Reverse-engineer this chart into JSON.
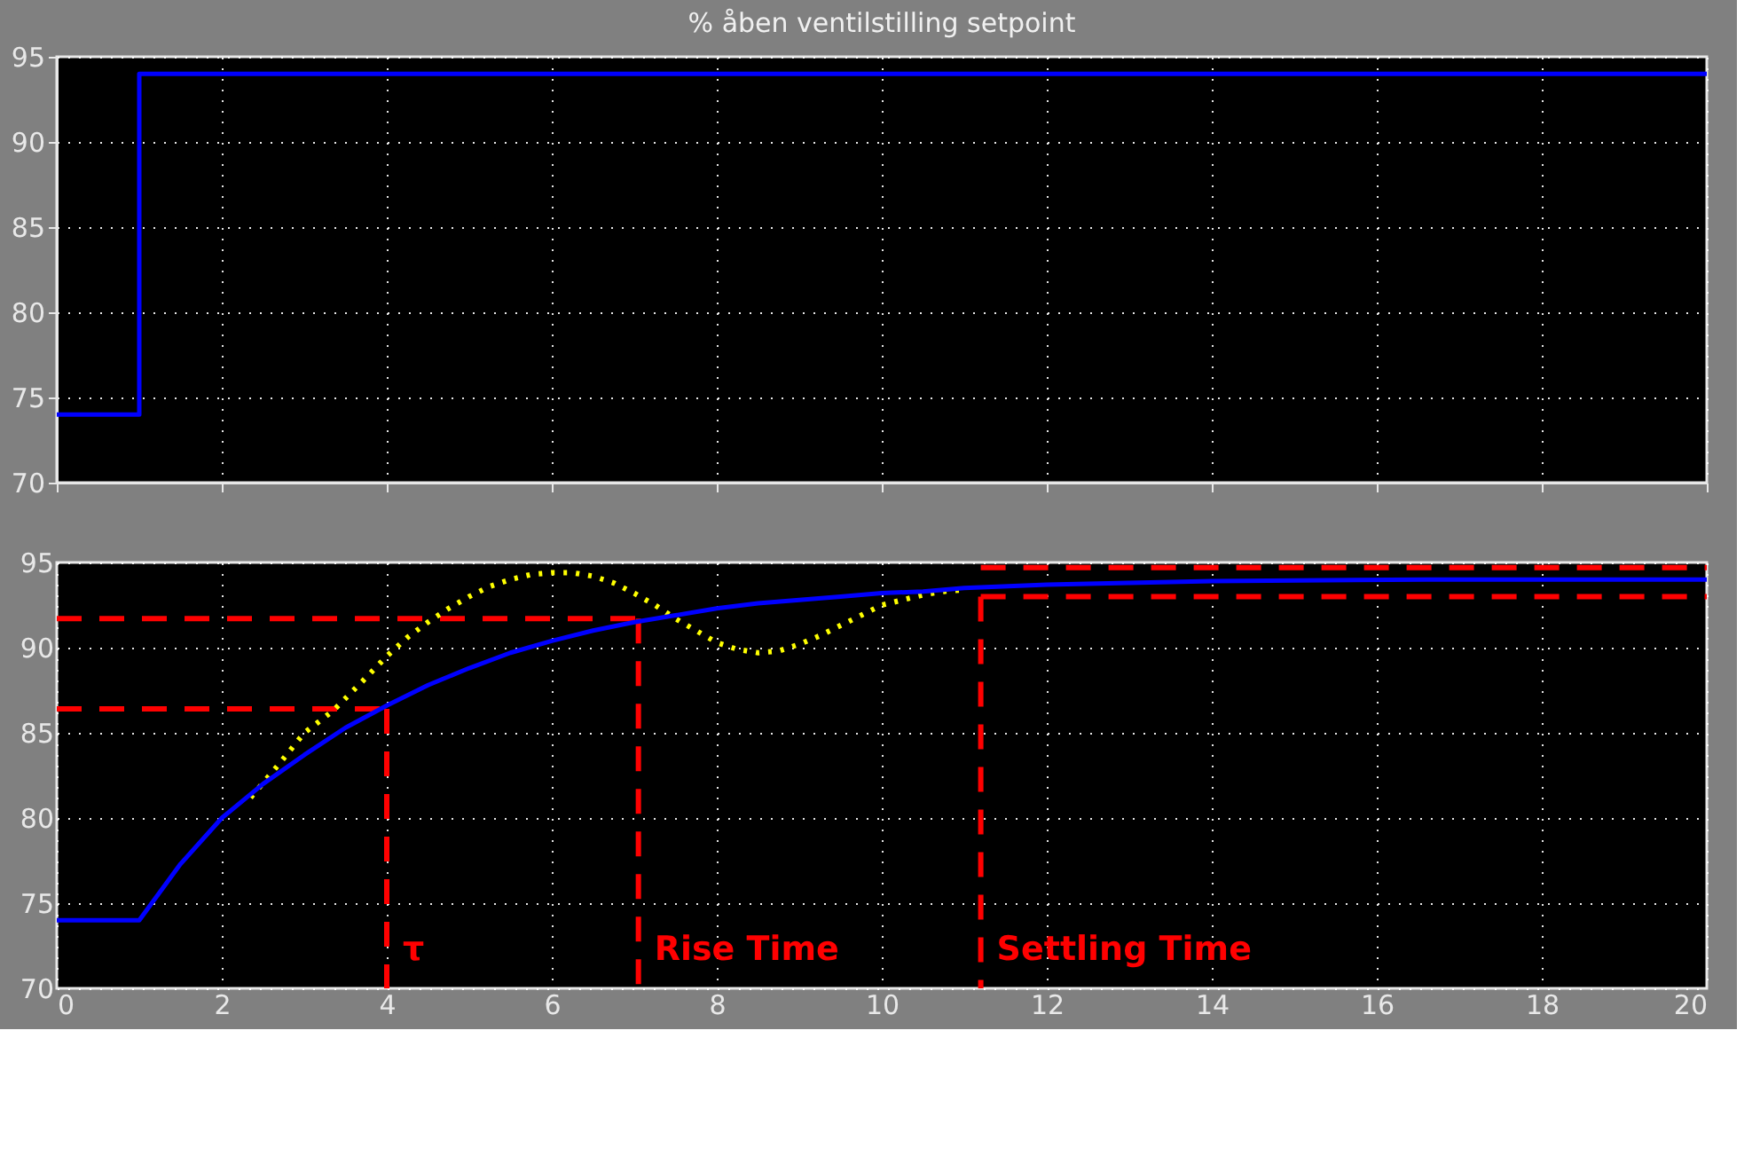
{
  "chart_data": [
    {
      "type": "step",
      "title": "% åben ventilstilling setpoint",
      "xlim": [
        0,
        20
      ],
      "xticks": [
        0,
        2,
        4,
        6,
        8,
        10,
        12,
        14,
        16,
        18,
        20
      ],
      "ylim": [
        70,
        95
      ],
      "yticks": [
        70,
        75,
        80,
        85,
        90,
        95
      ],
      "tick_labels": "y",
      "grid": true,
      "marker": "none",
      "series": [
        {
          "color": "#0000ff",
          "line_style": "solid",
          "x": [
            0,
            1,
            20
          ],
          "values": [
            74,
            94,
            94
          ]
        }
      ]
    },
    {
      "type": "line",
      "xlim": [
        0,
        20
      ],
      "xticks": [
        0,
        2,
        4,
        6,
        8,
        10,
        12,
        14,
        16,
        18,
        20
      ],
      "ylim": [
        70,
        95
      ],
      "yticks": [
        70,
        75,
        80,
        85,
        90,
        95
      ],
      "grid": true,
      "marker": "none",
      "series": [
        {
          "color": "#ff0000",
          "line_style": "dashed",
          "x": [
            0,
            4
          ],
          "values": [
            86.4,
            86.4
          ]
        },
        {
          "color": "#ff0000",
          "line_style": "dashed",
          "x": [
            4,
            4
          ],
          "values": [
            86.4,
            70
          ]
        },
        {
          "color": "#ff0000",
          "line_style": "dashed",
          "x": [
            0,
            7.05
          ],
          "values": [
            91.7,
            91.7
          ]
        },
        {
          "color": "#ff0000",
          "line_style": "dashed",
          "x": [
            7.05,
            7.05
          ],
          "values": [
            91.7,
            70
          ]
        },
        {
          "color": "#ff0000",
          "line_style": "dashed",
          "x": [
            11.2,
            20
          ],
          "values": [
            94.7,
            94.7
          ]
        },
        {
          "color": "#ff0000",
          "line_style": "dashed",
          "x": [
            11.2,
            20
          ],
          "values": [
            93.0,
            93.0
          ]
        },
        {
          "color": "#ff0000",
          "line_style": "dashed",
          "x": [
            11.2,
            11.2
          ],
          "values": [
            93.0,
            70
          ]
        },
        {
          "color": "#ffff00",
          "line_style": "dotted",
          "x": [
            2.35,
            2.7,
            3,
            3.35,
            3.7,
            4,
            4.25,
            4.5,
            4.75,
            5,
            5.25,
            5.5,
            5.75,
            6,
            6.25,
            6.5,
            6.75,
            7,
            7.25,
            7.5,
            7.75,
            8,
            8.25,
            8.5,
            8.75,
            9,
            9.25,
            9.5,
            9.75,
            10,
            10.25,
            10.5,
            10.75,
            11
          ],
          "values": [
            81.2,
            83.2,
            85,
            86.3,
            88,
            89.5,
            90.6,
            91.5,
            92.3,
            93,
            93.6,
            94,
            94.3,
            94.4,
            94.4,
            94.2,
            93.8,
            93.2,
            92.5,
            91.7,
            91,
            90.3,
            89.9,
            89.7,
            89.8,
            90.2,
            90.7,
            91.3,
            91.9,
            92.5,
            92.8,
            93.1,
            93.3,
            93.4
          ]
        },
        {
          "color": "#0000ff",
          "line_style": "solid",
          "x": [
            0,
            1,
            1.5,
            2,
            2.5,
            3,
            3.5,
            4,
            4.5,
            5,
            5.5,
            6,
            6.5,
            7,
            7.5,
            8,
            8.5,
            9,
            9.5,
            10,
            10.5,
            11,
            12,
            13,
            14,
            16.6,
            20
          ],
          "values": [
            74,
            74,
            77.3,
            80,
            82,
            83.7,
            85.3,
            86.6,
            87.8,
            88.8,
            89.7,
            90.4,
            91,
            91.5,
            91.9,
            92.3,
            92.6,
            92.8,
            93,
            93.2,
            93.3,
            93.5,
            93.7,
            93.8,
            93.9,
            94,
            94
          ]
        }
      ],
      "annotations": [
        {
          "text": "τ",
          "x": 4,
          "y": 72.3
        },
        {
          "text": "Rise Time",
          "x": 7.05,
          "y": 72.3
        },
        {
          "text": "Settling Time",
          "x": 11.2,
          "y": 72.3
        }
      ]
    }
  ]
}
